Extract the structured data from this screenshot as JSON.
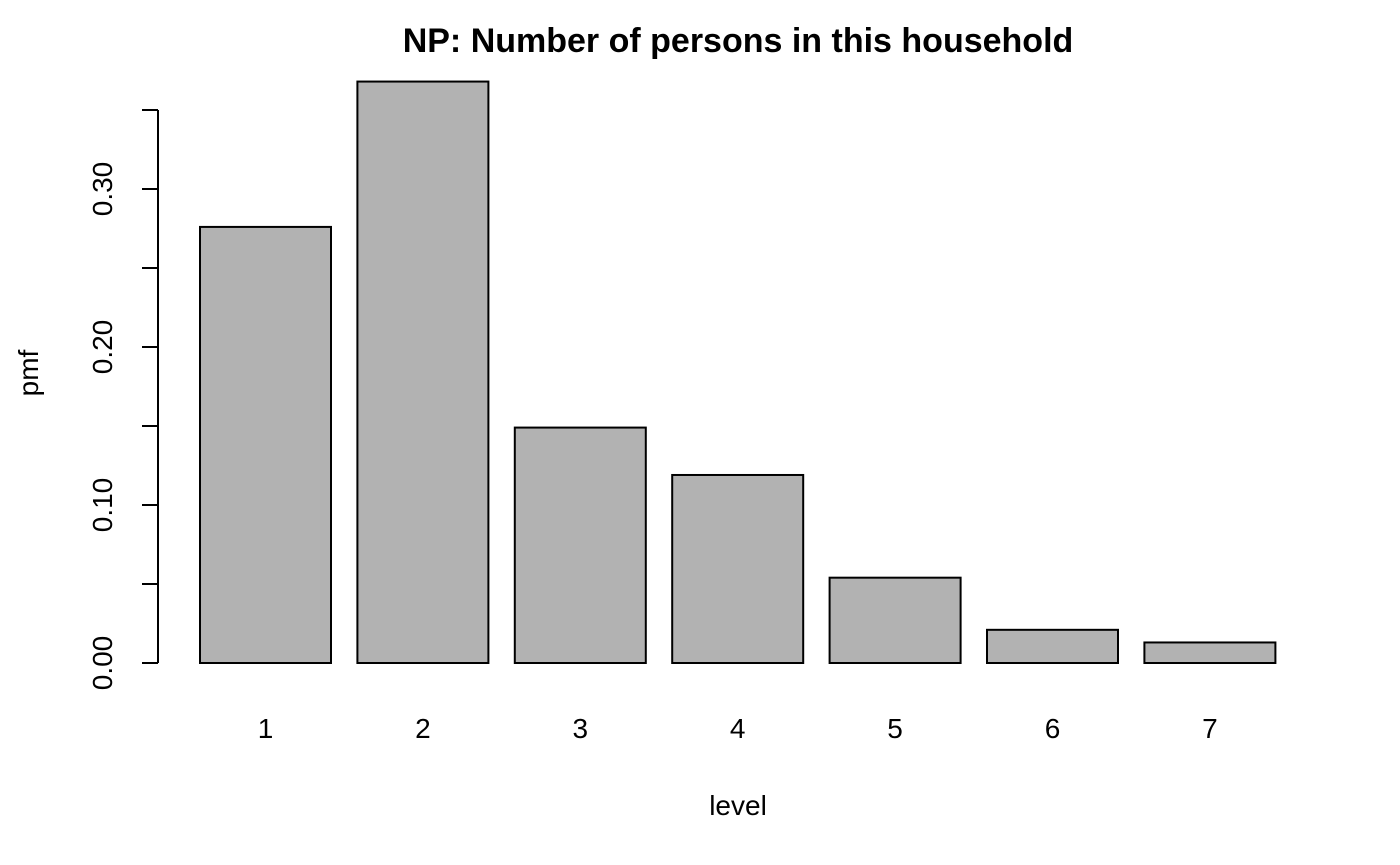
{
  "chart_data": {
    "type": "bar",
    "title": "NP: Number of persons in this household",
    "xlabel": "level",
    "ylabel": "pmf",
    "categories": [
      "1",
      "2",
      "3",
      "4",
      "5",
      "6",
      "7"
    ],
    "values": [
      0.276,
      0.368,
      0.149,
      0.119,
      0.054,
      0.021,
      0.013
    ],
    "ylim": [
      0,
      0.37
    ],
    "yticks": [
      0.0,
      0.05,
      0.1,
      0.15,
      0.2,
      0.25,
      0.3,
      0.35
    ],
    "ytick_labels": [
      "0.00",
      "",
      "0.10",
      "",
      "0.20",
      "",
      "0.30",
      ""
    ],
    "bar_color": "#b2b2b2",
    "grid": false,
    "legend": "none"
  }
}
